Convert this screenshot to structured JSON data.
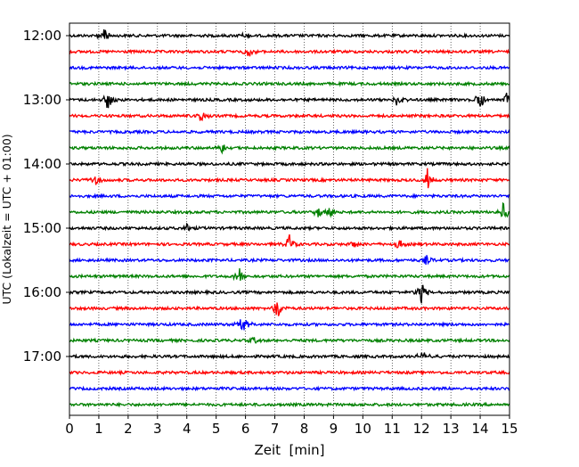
{
  "chart_data": {
    "type": "line",
    "title": "",
    "xlabel": "Zeit  [min]",
    "ylabel": "UTC (Lokalzeit = UTC + 01:00)",
    "xlim": [
      0,
      15
    ],
    "x_ticks": [
      "0",
      "1",
      "2",
      "3",
      "4",
      "5",
      "6",
      "7",
      "8",
      "9",
      "10",
      "11",
      "12",
      "13",
      "14",
      "15"
    ],
    "y_tick_labels": [
      "12:00",
      "13:00",
      "14:00",
      "15:00",
      "16:00",
      "17:00"
    ],
    "grid": "vertical-dotted",
    "colors": [
      "#000000",
      "#ff0000",
      "#0000ff",
      "#008000"
    ],
    "series": [
      {
        "start": "12:00",
        "color": "#000000",
        "events": [
          {
            "x": 1.2,
            "amp": 1.0
          },
          {
            "x": 6.0,
            "amp": 0.4
          }
        ]
      },
      {
        "start": "12:15",
        "color": "#ff0000",
        "events": [
          {
            "x": 6.1,
            "amp": 0.55
          }
        ]
      },
      {
        "start": "12:30",
        "color": "#0000ff",
        "events": []
      },
      {
        "start": "12:45",
        "color": "#008000",
        "events": []
      },
      {
        "start": "13:00",
        "color": "#000000",
        "events": [
          {
            "x": 1.3,
            "amp": 0.9
          },
          {
            "x": 11.2,
            "amp": 0.7
          },
          {
            "x": 14.0,
            "amp": 0.9
          },
          {
            "x": 14.9,
            "amp": 0.6
          }
        ]
      },
      {
        "start": "13:15",
        "color": "#ff0000",
        "events": [
          {
            "x": 4.5,
            "amp": 0.5
          }
        ]
      },
      {
        "start": "13:30",
        "color": "#0000ff",
        "events": []
      },
      {
        "start": "13:45",
        "color": "#008000",
        "events": [
          {
            "x": 5.2,
            "amp": 0.5
          }
        ]
      },
      {
        "start": "14:00",
        "color": "#000000",
        "events": []
      },
      {
        "start": "14:15",
        "color": "#ff0000",
        "events": [
          {
            "x": 0.9,
            "amp": 0.45
          },
          {
            "x": 12.2,
            "amp": 1.0
          }
        ]
      },
      {
        "start": "14:30",
        "color": "#0000ff",
        "events": []
      },
      {
        "start": "14:45",
        "color": "#008000",
        "events": [
          {
            "x": 8.5,
            "amp": 0.5
          },
          {
            "x": 8.9,
            "amp": 0.55
          },
          {
            "x": 14.8,
            "amp": 0.9
          }
        ]
      },
      {
        "start": "15:00",
        "color": "#000000",
        "events": [
          {
            "x": 4.0,
            "amp": 0.35
          }
        ]
      },
      {
        "start": "15:15",
        "color": "#ff0000",
        "events": [
          {
            "x": 7.5,
            "amp": 0.85
          },
          {
            "x": 9.7,
            "amp": 0.35
          },
          {
            "x": 11.2,
            "amp": 0.55
          }
        ]
      },
      {
        "start": "15:30",
        "color": "#0000ff",
        "events": [
          {
            "x": 12.2,
            "amp": 0.45
          }
        ]
      },
      {
        "start": "15:45",
        "color": "#008000",
        "events": [
          {
            "x": 5.8,
            "amp": 0.85
          }
        ]
      },
      {
        "start": "16:00",
        "color": "#000000",
        "events": [
          {
            "x": 12.0,
            "amp": 1.0
          }
        ]
      },
      {
        "start": "16:15",
        "color": "#ff0000",
        "events": [
          {
            "x": 7.1,
            "amp": 1.0
          }
        ]
      },
      {
        "start": "16:30",
        "color": "#0000ff",
        "events": [
          {
            "x": 5.9,
            "amp": 1.0
          }
        ]
      },
      {
        "start": "16:45",
        "color": "#008000",
        "events": [
          {
            "x": 6.3,
            "amp": 0.3
          }
        ]
      },
      {
        "start": "17:00",
        "color": "#000000",
        "events": [
          {
            "x": 12.1,
            "amp": 0.8
          }
        ]
      },
      {
        "start": "17:15",
        "color": "#ff0000",
        "events": []
      },
      {
        "start": "17:30",
        "color": "#0000ff",
        "events": []
      },
      {
        "start": "17:45",
        "color": "#008000",
        "events": []
      }
    ]
  }
}
